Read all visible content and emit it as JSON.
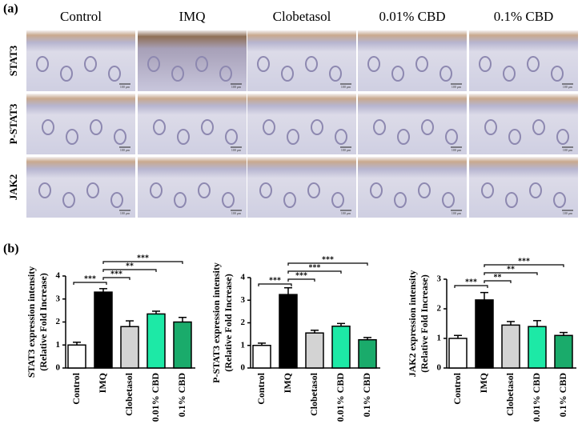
{
  "panel_a": {
    "label": "(a)",
    "columns": [
      "Control",
      "IMQ",
      "Clobetasol",
      "0.01% CBD",
      "0.1% CBD"
    ],
    "rows": [
      "STAT3",
      "P-STAT3",
      "JAK2"
    ],
    "scale_bar": "100 μm"
  },
  "panel_b": {
    "label": "(b)"
  },
  "chart_data": [
    {
      "type": "bar",
      "y_label": [
        "STAT3 expression intensity",
        "(Relative Fold Increase)"
      ],
      "categories": [
        "Control",
        "IMQ",
        "Clobetasol",
        "0.01% CBD",
        "0.1% CBD"
      ],
      "values": [
        1.0,
        3.3,
        1.8,
        2.35,
        2.0
      ],
      "errors": [
        0.12,
        0.15,
        0.25,
        0.12,
        0.2
      ],
      "colors": [
        "#ffffff",
        "#000000",
        "#d3d3d3",
        "#1de9a6",
        "#1aab6b"
      ],
      "ylim": [
        0,
        4
      ],
      "yticks": [
        0,
        1,
        2,
        3,
        4
      ],
      "significance": [
        "***",
        "***",
        "**",
        "***"
      ]
    },
    {
      "type": "bar",
      "y_label": [
        "P-STAT3 expression intensity",
        "(Relative Fold Increase)"
      ],
      "categories": [
        "Control",
        "IMQ",
        "Clobetasol",
        "0.01% CBD",
        "0.1% CBD"
      ],
      "values": [
        1.0,
        3.25,
        1.55,
        1.85,
        1.25
      ],
      "errors": [
        0.1,
        0.3,
        0.12,
        0.12,
        0.1
      ],
      "colors": [
        "#ffffff",
        "#000000",
        "#d3d3d3",
        "#1de9a6",
        "#1aab6b"
      ],
      "ylim": [
        0,
        4
      ],
      "yticks": [
        0,
        1,
        2,
        3,
        4
      ],
      "significance": [
        "***",
        "***",
        "***",
        "***"
      ]
    },
    {
      "type": "bar",
      "y_label": [
        "JAK2 expression intensity",
        "(Relative Fold Increase)"
      ],
      "categories": [
        "Control",
        "IMQ",
        "Clobetasol",
        "0.01% CBD",
        "0.1% CBD"
      ],
      "values": [
        1.0,
        2.3,
        1.45,
        1.4,
        1.1
      ],
      "errors": [
        0.1,
        0.25,
        0.12,
        0.2,
        0.1
      ],
      "colors": [
        "#ffffff",
        "#000000",
        "#d3d3d3",
        "#1de9a6",
        "#1aab6b"
      ],
      "ylim": [
        0,
        3
      ],
      "yticks": [
        0,
        1,
        2,
        3
      ],
      "significance": [
        "***",
        "**",
        "**",
        "***"
      ]
    }
  ]
}
